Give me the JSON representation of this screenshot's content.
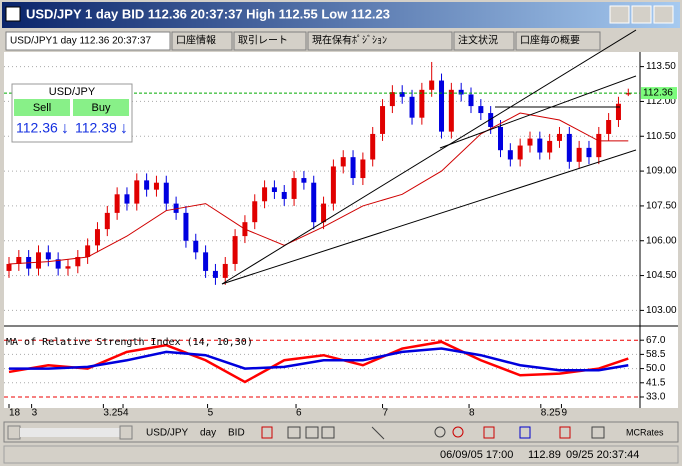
{
  "window": {
    "title": "USD/JPY 1 day BID 112.36 20:37:37 High 112.55 Low 112.23",
    "tabs": [
      "USD/JPY1 day 112.36 20:37:37",
      "口座情報",
      "取引レート",
      "現在保有ﾎﾟｼﾞｼｮﾝ",
      "注文状況",
      "口座毎の概要"
    ]
  },
  "ticker": {
    "symbol": "USD/JPY",
    "sell_label": "Sell",
    "buy_label": "Buy",
    "sell": "112.36",
    "buy": "112.39",
    "sell_arrow": "↓",
    "buy_arrow": "↓"
  },
  "chart_data": {
    "type": "candlestick",
    "open": [
      104.7,
      105.0,
      105.3,
      104.8,
      105.5,
      105.2,
      104.8,
      104.9,
      105.3,
      105.8,
      106.5,
      107.2,
      108.0,
      107.6,
      108.6,
      108.2,
      108.5,
      107.6,
      107.2,
      106.0,
      105.5,
      104.7,
      104.4,
      105.0,
      106.2,
      106.8,
      107.7,
      108.3,
      108.1,
      107.8,
      108.7,
      108.5,
      106.8,
      107.6,
      109.2,
      109.6,
      108.7,
      109.5,
      110.6,
      111.8,
      112.4,
      112.2,
      111.3,
      112.5,
      112.9,
      110.7,
      112.5,
      112.3,
      111.8,
      111.5,
      110.9,
      109.9,
      109.5,
      110.1,
      110.4,
      109.8,
      110.3,
      110.6,
      109.4,
      110.0,
      109.6,
      110.6,
      111.2,
      112.3
    ],
    "high": [
      105.3,
      105.6,
      105.6,
      105.8,
      105.8,
      105.5,
      105.2,
      105.6,
      106.1,
      106.8,
      107.5,
      108.3,
      108.3,
      108.9,
      108.9,
      108.8,
      108.8,
      107.9,
      107.5,
      106.3,
      105.8,
      105.0,
      105.3,
      106.5,
      107.1,
      108.0,
      108.6,
      108.6,
      108.4,
      109.0,
      109.0,
      108.8,
      107.9,
      109.5,
      109.9,
      109.9,
      109.8,
      110.9,
      112.1,
      112.7,
      112.7,
      112.5,
      112.8,
      113.7,
      113.2,
      112.8,
      112.8,
      112.6,
      112.1,
      111.8,
      111.2,
      110.2,
      110.4,
      110.7,
      110.7,
      110.6,
      110.9,
      110.9,
      110.3,
      110.3,
      110.9,
      111.5,
      112.2,
      112.55
    ],
    "low": [
      104.4,
      104.7,
      104.5,
      104.5,
      104.9,
      104.5,
      104.5,
      104.6,
      105.0,
      105.5,
      106.2,
      106.9,
      107.3,
      107.3,
      107.9,
      107.9,
      107.3,
      106.9,
      105.7,
      105.2,
      104.4,
      104.1,
      104.1,
      104.7,
      105.9,
      106.5,
      107.4,
      107.8,
      107.5,
      107.5,
      108.2,
      106.5,
      106.5,
      107.3,
      108.9,
      108.4,
      108.4,
      109.2,
      110.3,
      111.5,
      111.9,
      111.0,
      111.0,
      112.2,
      110.4,
      110.4,
      112.0,
      111.5,
      111.2,
      110.6,
      109.6,
      109.2,
      109.2,
      109.8,
      109.5,
      109.5,
      110.0,
      109.1,
      109.1,
      109.3,
      109.3,
      110.3,
      110.9,
      112.23
    ],
    "close": [
      105.0,
      105.3,
      104.8,
      105.5,
      105.2,
      104.8,
      104.9,
      105.3,
      105.8,
      106.5,
      107.2,
      108.0,
      107.6,
      108.6,
      108.2,
      108.5,
      107.6,
      107.2,
      106.0,
      105.5,
      104.7,
      104.4,
      105.0,
      106.2,
      106.8,
      107.7,
      108.3,
      108.1,
      107.8,
      108.7,
      108.5,
      106.8,
      107.6,
      109.2,
      109.6,
      108.7,
      109.5,
      110.6,
      111.8,
      112.4,
      112.2,
      111.3,
      112.5,
      112.9,
      110.7,
      112.5,
      112.3,
      111.8,
      111.5,
      110.9,
      109.9,
      109.5,
      110.1,
      110.4,
      109.8,
      110.3,
      110.6,
      109.4,
      110.0,
      109.6,
      110.6,
      111.2,
      111.9,
      112.36
    ],
    "up_color": "#e00000",
    "down_color": "#0000e0",
    "last_label": "112.36",
    "ylim": [
      102.5,
      114.0
    ],
    "yticks": [
      {
        "value": 103,
        "label": "103.00"
      },
      {
        "value": 104.5,
        "label": "104.50"
      },
      {
        "value": 106,
        "label": "106.00"
      },
      {
        "value": 107.5,
        "label": "107.50"
      },
      {
        "value": 109,
        "label": "109.00"
      },
      {
        "value": 110.5,
        "label": "110.50"
      },
      {
        "value": 112,
        "label": "112.00"
      },
      {
        "value": 113.5,
        "label": "113.50"
      }
    ],
    "xticks": [
      {
        "value": 0,
        "label": "18"
      },
      {
        "value": 2.3,
        "label": "3"
      },
      {
        "value": 9.6,
        "label": "3.25"
      },
      {
        "value": 11.6,
        "label": "4"
      },
      {
        "value": 20.2,
        "label": "5"
      },
      {
        "value": 29.2,
        "label": "6"
      },
      {
        "value": 38,
        "label": "7"
      },
      {
        "value": 46.8,
        "label": "8"
      },
      {
        "value": 54.1,
        "label": "8.25"
      },
      {
        "value": 56.2,
        "label": "9"
      }
    ],
    "overlays": [
      {
        "color": "#d00000",
        "x": [
          0,
          4,
          8,
          12,
          16,
          20,
          24,
          28,
          32,
          36,
          40,
          44,
          48,
          52,
          56,
          60,
          63
        ],
        "values": [
          105.0,
          105.1,
          105.3,
          106.2,
          107.3,
          107.6,
          106.5,
          105.8,
          106.6,
          107.5,
          108.0,
          109.0,
          110.6,
          111.5,
          111.2,
          110.3,
          110.3
        ]
      }
    ],
    "indicator": {
      "title": "MA of Relative Strength Index (14, 10,30)",
      "ylim": [
        28.8,
        73.1
      ],
      "yticks": [
        {
          "value": 33,
          "label": "33.0"
        },
        {
          "value": 41.5,
          "label": "41.5"
        },
        {
          "value": 50,
          "label": "50.0"
        },
        {
          "value": 58.5,
          "label": "58.5"
        },
        {
          "value": 67,
          "label": "67.0"
        }
      ],
      "series": [
        {
          "color": "#ff0000",
          "x": [
            0,
            4,
            8,
            12,
            16,
            20,
            24,
            28,
            32,
            36,
            40,
            44,
            48,
            52,
            56,
            60,
            63
          ],
          "values": [
            48,
            52,
            50,
            60,
            64,
            55,
            42,
            55,
            58,
            52,
            62,
            66,
            55,
            46,
            47,
            50,
            56
          ]
        },
        {
          "color": "#0000dd",
          "x": [
            0,
            4,
            8,
            12,
            16,
            20,
            24,
            28,
            32,
            36,
            40,
            44,
            48,
            52,
            56,
            60,
            63
          ],
          "values": [
            50,
            50,
            51,
            55,
            60,
            58,
            50,
            51,
            55,
            55,
            60,
            62,
            58,
            52,
            49,
            49,
            52
          ]
        }
      ]
    }
  },
  "toolbar": {
    "symbol": "USD/JPY",
    "period": "day",
    "side": "BID",
    "rates": "MCRates"
  },
  "status_bar": {
    "start": "06/09/05 17:00",
    "price": "112.89",
    "time": "09/25 20:37:44"
  }
}
